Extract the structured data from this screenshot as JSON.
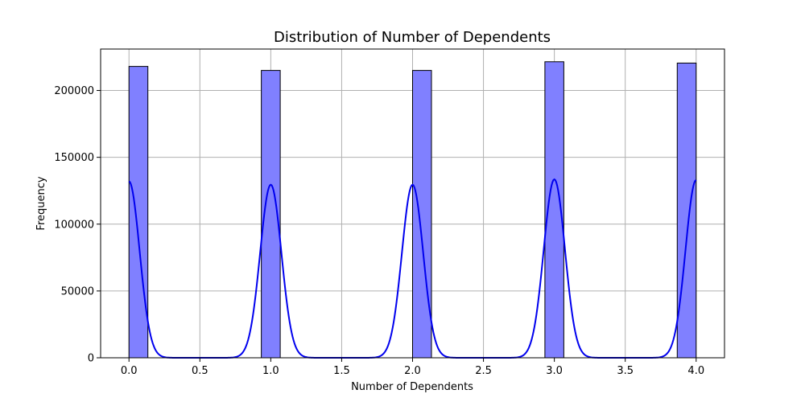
{
  "chart_data": {
    "type": "histogram",
    "title": "Distribution of Number of Dependents",
    "xlabel": "Number of Dependents",
    "ylabel": "Frequency",
    "xlim": [
      -0.2,
      4.2
    ],
    "ylim": [
      0,
      231000
    ],
    "x_ticks": [
      0.0,
      0.5,
      1.0,
      1.5,
      2.0,
      2.5,
      3.0,
      3.5,
      4.0
    ],
    "x_tick_labels": [
      "0.0",
      "0.5",
      "1.0",
      "1.5",
      "2.0",
      "2.5",
      "3.0",
      "3.5",
      "4.0"
    ],
    "y_ticks": [
      0,
      50000,
      100000,
      150000,
      200000
    ],
    "y_tick_labels": [
      "0",
      "50000",
      "100000",
      "150000",
      "200000"
    ],
    "grid": true,
    "bars": [
      {
        "x0": 0.0,
        "x1": 0.1333,
        "value": 218000
      },
      {
        "x0": 0.9333,
        "x1": 1.0667,
        "value": 215000
      },
      {
        "x0": 2.0,
        "x1": 2.1333,
        "value": 215000
      },
      {
        "x0": 2.9333,
        "x1": 3.0667,
        "value": 221500
      },
      {
        "x0": 3.8667,
        "x1": 4.0,
        "value": 220500
      }
    ],
    "bar_color": "#8080ff",
    "bar_edge_color": "#000000",
    "kde": {
      "color": "#0000ee",
      "peaks": [
        {
          "center": 0.0,
          "height": 132000
        },
        {
          "center": 1.0,
          "height": 129500
        },
        {
          "center": 2.0,
          "height": 129500
        },
        {
          "center": 3.0,
          "height": 133500
        },
        {
          "center": 4.0,
          "height": 133000
        }
      ],
      "sigma": 0.075
    }
  }
}
